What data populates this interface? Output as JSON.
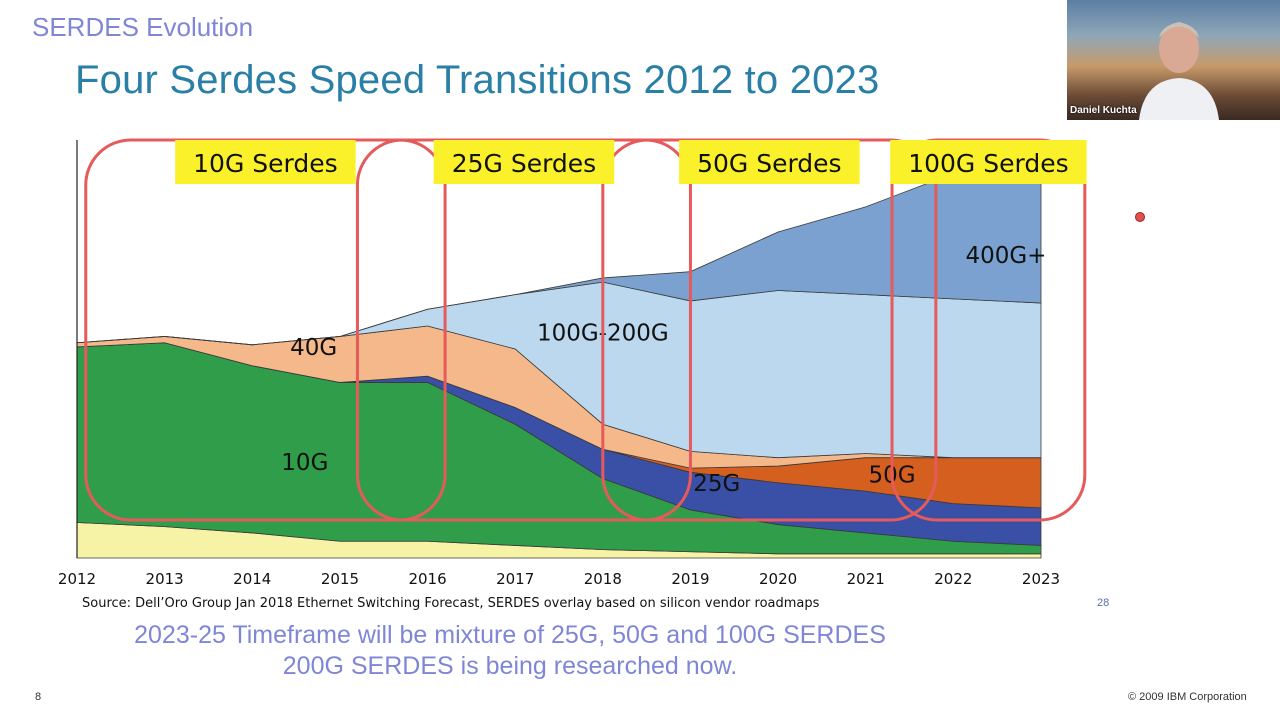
{
  "slide": {
    "section_title": "SERDES Evolution",
    "title": "Four Serdes Speed Transitions 2012 to 2023",
    "note_line1": "2023-25 Timeframe will be mixture of 25G, 50G and  100G SERDES",
    "note_line2": "200G SERDES is being researched now.",
    "slide_number": "8",
    "copyright": "© 2009 IBM Corporation",
    "page_ref": "28",
    "source": "Source: Dell’Oro Group Jan 2018 Ethernet Switching Forecast, SERDES overlay based on silicon vendor roadmaps"
  },
  "video": {
    "participant_name": "Daniel Kuchta"
  },
  "chart_data": {
    "type": "area",
    "stacked": true,
    "x": [
      2012,
      2013,
      2014,
      2015,
      2016,
      2017,
      2018,
      2019,
      2020,
      2021,
      2022,
      2023
    ],
    "ylim": [
      0,
      100
    ],
    "series": [
      {
        "name": "",
        "color": "#f6f3a6",
        "values": [
          8.5,
          7.5,
          6,
          4,
          4,
          3,
          2,
          1.5,
          1,
          1,
          1,
          1
        ]
      },
      {
        "name": "10G",
        "color": "#2f9d4a",
        "values": [
          42,
          44,
          40,
          38,
          38,
          29,
          17,
          10,
          7,
          5,
          3,
          2
        ]
      },
      {
        "name": "25G",
        "color": "#3a4fa6",
        "values": [
          0,
          0,
          0,
          0,
          1.5,
          4,
          7,
          9,
          10,
          10,
          9,
          9
        ]
      },
      {
        "name": "50G",
        "color": "#d45f1f",
        "values": [
          0,
          0,
          0,
          0,
          0,
          0,
          0,
          1,
          4,
          8,
          11,
          12
        ]
      },
      {
        "name": "40G",
        "color": "#f5b88b",
        "values": [
          1,
          1.5,
          5,
          11,
          12,
          14,
          6,
          4,
          2,
          1,
          0,
          0
        ]
      },
      {
        "name": "100G-200G",
        "color": "#bcd8ee",
        "values": [
          0,
          0,
          0,
          0,
          4,
          13,
          34,
          36,
          40,
          38,
          38,
          37
        ]
      },
      {
        "name": "400G+",
        "color": "#7aa1cf",
        "values": [
          0,
          0,
          0,
          0,
          0,
          0,
          1,
          7,
          14,
          21,
          30,
          39
        ]
      }
    ],
    "band_labels": [
      {
        "text": "10G",
        "x": 2014.6,
        "y": 23
      },
      {
        "text": "40G",
        "x": 2014.7,
        "y": 50.5
      },
      {
        "text": "100G-200G",
        "x": 2018.0,
        "y": 54
      },
      {
        "text": "25G",
        "x": 2019.3,
        "y": 18
      },
      {
        "text": "50G",
        "x": 2021.3,
        "y": 20
      },
      {
        "text": "400G+",
        "x": 2022.6,
        "y": 72.5
      }
    ],
    "serdes_eras": [
      {
        "label": "10G Serdes",
        "start": 2012.1,
        "end": 2016.2
      },
      {
        "label": "25G Serdes",
        "start": 2015.2,
        "end": 2019.0
      },
      {
        "label": "50G Serdes",
        "start": 2018.0,
        "end": 2021.8
      },
      {
        "label": "100G Serdes",
        "start": 2021.3,
        "end": 2023.5
      }
    ]
  }
}
